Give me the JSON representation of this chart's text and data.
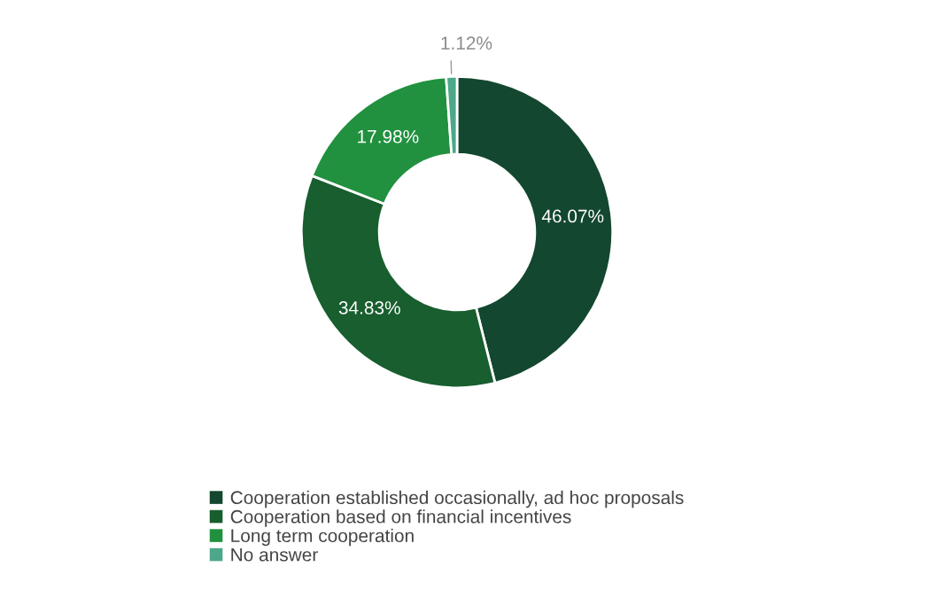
{
  "chart_data": {
    "type": "donut",
    "categories": [
      "Cooperation established occasionally, ad hoc proposals",
      "Cooperation based on financial incentives",
      "Long term cooperation",
      "No answer"
    ],
    "values": [
      46.07,
      34.83,
      17.98,
      1.12
    ],
    "value_labels": [
      "46.07%",
      "34.83%",
      "17.98%",
      "1.12%"
    ],
    "colors": [
      "#13472f",
      "#185e2e",
      "#21913f",
      "#4da78a"
    ],
    "legend": "bottom"
  }
}
